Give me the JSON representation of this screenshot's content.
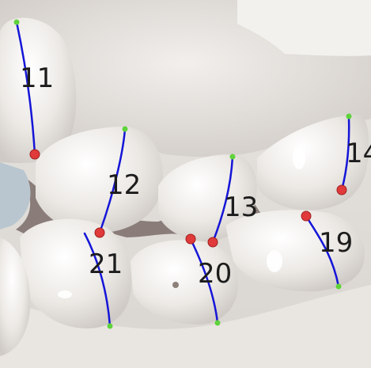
{
  "teeth": [
    {
      "label": "11"
    },
    {
      "label": "12"
    },
    {
      "label": "13"
    },
    {
      "label": "14"
    },
    {
      "label": "19"
    },
    {
      "label": "20"
    },
    {
      "label": "21"
    }
  ],
  "colors": {
    "axis_line": "#1515d8",
    "green_marker": "#5fd33a",
    "red_marker": "#e03a3a",
    "label_text": "#1c1c1c",
    "tooth_surface": "#ece9e5",
    "gum_surface": "#e6e2de",
    "shadow": "#6e5d5a"
  }
}
